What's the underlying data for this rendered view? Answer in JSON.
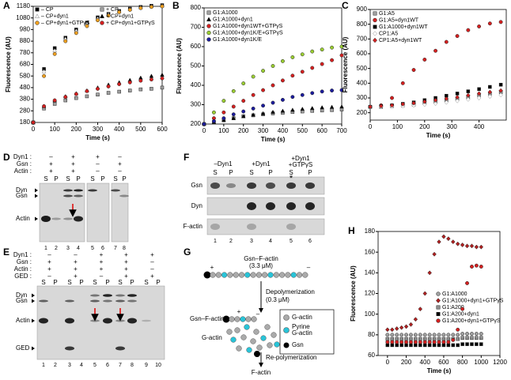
{
  "chart_data": [
    {
      "type": "scatter",
      "panel": "A",
      "xlabel": "Time (s)",
      "ylabel": "Fluorescence (AU)",
      "xlim": [
        0,
        600
      ],
      "ylim": [
        180,
        1180
      ],
      "xticks": [
        0,
        100,
        200,
        300,
        400,
        500,
        600
      ],
      "yticks": [
        180,
        280,
        380,
        480,
        580,
        680,
        780,
        880,
        980,
        1080,
        1180
      ],
      "legend_columns": 2,
      "x": [
        0,
        50,
        100,
        150,
        200,
        250,
        300,
        350,
        400,
        450,
        500,
        550,
        600
      ],
      "series": [
        {
          "name": "– CP",
          "color": "#000000",
          "marker": "square",
          "filled": true,
          "values": [
            180,
            640,
            820,
            910,
            980,
            1040,
            1085,
            1115,
            1140,
            1160,
            1175,
            1185,
            1190
          ]
        },
        {
          "name": "– CP+dyn1",
          "color": "#808080",
          "marker": "triangle",
          "filled": false,
          "values": [
            180,
            620,
            800,
            900,
            970,
            1030,
            1075,
            1110,
            1135,
            1155,
            1170,
            1180,
            1185
          ]
        },
        {
          "name": "– CP+dyn1+GTPγS",
          "color": "#f0a020",
          "marker": "circle",
          "filled": true,
          "values": [
            180,
            580,
            770,
            880,
            950,
            1010,
            1060,
            1100,
            1130,
            1150,
            1165,
            1175,
            1180
          ]
        },
        {
          "name": "+ CP",
          "color": "#a0a0a0",
          "marker": "square",
          "filled": true,
          "values": [
            180,
            300,
            340,
            370,
            390,
            405,
            420,
            435,
            445,
            455,
            465,
            470,
            480
          ]
        },
        {
          "name": "+ CP+dyn1",
          "color": "#000000",
          "marker": "triangle",
          "filled": true,
          "values": [
            180,
            320,
            370,
            405,
            430,
            455,
            480,
            505,
            525,
            545,
            565,
            580,
            590
          ]
        },
        {
          "name": "+ CP+dyn1+GTPγS",
          "color": "#d42020",
          "marker": "circle",
          "filled": true,
          "values": [
            180,
            320,
            370,
            400,
            425,
            450,
            470,
            490,
            510,
            525,
            540,
            550,
            560
          ]
        }
      ]
    },
    {
      "type": "scatter",
      "panel": "B",
      "xlabel": "Time (s)",
      "ylabel": "Fluorescence (AU)",
      "xlim": [
        0,
        700
      ],
      "ylim": [
        200,
        800
      ],
      "xticks": [
        0,
        100,
        200,
        300,
        400,
        500,
        600,
        700
      ],
      "yticks": [
        200,
        300,
        400,
        500,
        600,
        700,
        800
      ],
      "legend_columns": 1,
      "x": [
        0,
        50,
        100,
        150,
        200,
        250,
        300,
        350,
        400,
        450,
        500,
        550,
        600,
        650,
        700
      ],
      "series": [
        {
          "name": "G1:A1000",
          "color": "#a0a0a0",
          "marker": "square",
          "filled": true,
          "values": [
            200,
            210,
            220,
            230,
            240,
            245,
            250,
            255,
            258,
            262,
            265,
            268,
            270,
            272,
            275
          ]
        },
        {
          "name": "G1:A1000+dyn1",
          "color": "#000000",
          "marker": "triangle",
          "filled": true,
          "values": [
            200,
            210,
            220,
            230,
            240,
            248,
            255,
            262,
            268,
            273,
            278,
            282,
            286,
            288,
            290
          ]
        },
        {
          "name": "G1:A1000+dyn1WT+GTPγS",
          "color": "#d42020",
          "marker": "circle",
          "filled": true,
          "values": [
            200,
            230,
            260,
            290,
            320,
            350,
            375,
            400,
            425,
            450,
            470,
            490,
            510,
            530,
            555
          ]
        },
        {
          "name": "G1:A1000+dyn1K/E+GTPγS",
          "color": "#9acd32",
          "marker": "circle",
          "filled": true,
          "values": [
            200,
            260,
            320,
            370,
            410,
            445,
            475,
            500,
            525,
            545,
            560,
            575,
            585,
            595,
            600
          ]
        },
        {
          "name": "G1:A1000+dyn1K/E",
          "color": "#1c1c9c",
          "marker": "circle",
          "filled": true,
          "values": [
            200,
            215,
            230,
            250,
            265,
            280,
            295,
            310,
            325,
            340,
            350,
            360,
            368,
            373,
            375
          ]
        }
      ]
    },
    {
      "type": "scatter",
      "panel": "C",
      "xlabel": "Time (s)",
      "ylabel": "Fluorescence (AU)",
      "xlim": [
        0,
        500
      ],
      "ylim": [
        150,
        900
      ],
      "xticks": [
        0,
        100,
        200,
        300,
        400
      ],
      "yticks": [
        200,
        300,
        400,
        500,
        600,
        700,
        800,
        900
      ],
      "legend_columns": 1,
      "x": [
        0,
        40,
        80,
        120,
        160,
        200,
        240,
        280,
        320,
        360,
        400,
        440,
        480
      ],
      "series": [
        {
          "name": "G1:A5",
          "color": "#a0a0a0",
          "marker": "square",
          "filled": true,
          "values": [
            240,
            240,
            245,
            250,
            255,
            265,
            275,
            285,
            295,
            305,
            320,
            330,
            340
          ]
        },
        {
          "name": "G1:A5+dyn1WT",
          "color": "#d42020",
          "marker": "circle",
          "filled": true,
          "values": [
            240,
            250,
            300,
            400,
            490,
            560,
            620,
            680,
            720,
            760,
            785,
            805,
            815
          ]
        },
        {
          "name": "G1:A1000+dyn1WT",
          "color": "#000000",
          "marker": "square",
          "filled": true,
          "values": [
            240,
            245,
            250,
            260,
            270,
            285,
            300,
            315,
            330,
            345,
            360,
            375,
            390
          ]
        },
        {
          "name": "CP1:A5",
          "color": "#909090",
          "marker": "diamond",
          "filled": false,
          "values": [
            240,
            240,
            242,
            245,
            250,
            255,
            262,
            270,
            280,
            290,
            300,
            310,
            320
          ]
        },
        {
          "name": "CP1:A5+dyn1WT",
          "color": "#d42020",
          "marker": "diamond",
          "filled": true,
          "values": [
            240,
            245,
            250,
            258,
            265,
            275,
            285,
            295,
            305,
            318,
            330,
            340,
            350
          ]
        }
      ]
    },
    {
      "type": "scatter",
      "panel": "H",
      "xlabel": "Time (s)",
      "ylabel": "Fluorescence (AU)",
      "xlim": [
        -100,
        1200
      ],
      "ylim": [
        60,
        180
      ],
      "xticks": [
        0,
        200,
        400,
        600,
        800,
        1000,
        1200
      ],
      "yticks": [
        60,
        80,
        100,
        120,
        140,
        160,
        180
      ],
      "legend_columns": 1,
      "x": [
        0,
        50,
        100,
        150,
        200,
        250,
        300,
        350,
        400,
        450,
        500,
        550,
        600,
        650,
        700,
        750,
        800,
        850,
        900,
        950,
        1000
      ],
      "series": [
        {
          "name": "G1:A1000",
          "color": "#a0a0a0",
          "marker": "circle",
          "filled": true,
          "values": [
            80,
            80,
            80,
            80,
            80,
            80,
            80,
            80,
            80,
            80,
            80,
            80,
            80,
            80,
            80,
            80,
            81,
            81,
            81,
            81,
            81
          ]
        },
        {
          "name": "G1:A1000+dyn1+GTPγS",
          "color": "#b02020",
          "marker": "diamond",
          "filled": true,
          "values": [
            85,
            85,
            86,
            87,
            88,
            90,
            95,
            105,
            120,
            140,
            158,
            170,
            175,
            173,
            170,
            168,
            167,
            166,
            166,
            165,
            165
          ]
        },
        {
          "name": "G1:A200",
          "color": "#909090",
          "marker": "square",
          "filled": true,
          "values": [
            76,
            76,
            76,
            76,
            76,
            76,
            76,
            76,
            76,
            76,
            76,
            76,
            76,
            76,
            76,
            76,
            77,
            77,
            77,
            77,
            77
          ]
        },
        {
          "name": "G1:A200+dyn1",
          "color": "#000000",
          "marker": "square",
          "filled": true,
          "values": [
            70,
            70,
            70,
            70,
            70,
            70,
            70,
            70,
            70,
            70,
            70,
            70,
            70,
            70,
            70,
            70,
            71,
            71,
            71,
            71,
            71
          ]
        },
        {
          "name": "G1:A200+dyn1+GTPγS",
          "color": "#d42020",
          "marker": "circle",
          "filled": true,
          "values": [
            73,
            73,
            73,
            73,
            73,
            73,
            73,
            73,
            73,
            73,
            73,
            73,
            73,
            73,
            75,
            85,
            105,
            130,
            146,
            147,
            146
          ]
        }
      ]
    }
  ],
  "gel_d": {
    "panel": "D",
    "rows": [
      {
        "label": "Dyn1 :",
        "signs": [
          "–",
          "+",
          "+",
          "–"
        ]
      },
      {
        "label": "Gsn :",
        "signs": [
          "+",
          "+",
          "–",
          "+"
        ]
      },
      {
        "label": "Actin :",
        "signs": [
          "+",
          "+",
          "–",
          "–"
        ]
      }
    ],
    "lane_headers": [
      "S",
      "P",
      "S",
      "P",
      "S",
      "P",
      "S",
      "P"
    ],
    "lanes": [
      1,
      2,
      3,
      4,
      5,
      6,
      7,
      8
    ],
    "bands": [
      "Dyn",
      "Gsn",
      "Actin"
    ]
  },
  "gel_e": {
    "panel": "E",
    "rows": [
      {
        "label": "Dyn1 :",
        "signs": [
          "–",
          "–",
          "+",
          "+",
          "+"
        ]
      },
      {
        "label": "Gsn :",
        "signs": [
          "+",
          "+",
          "+",
          "+",
          "–"
        ]
      },
      {
        "label": "Actin :",
        "signs": [
          "+",
          "+",
          "+",
          "+",
          "–"
        ]
      },
      {
        "label": "GED :",
        "signs": [
          "–",
          "+",
          "–",
          "+",
          "+"
        ]
      }
    ],
    "lane_headers": [
      "S",
      "P",
      "S",
      "P",
      "S",
      "P",
      "S",
      "P",
      "S",
      "P"
    ],
    "lanes": [
      1,
      2,
      3,
      4,
      5,
      6,
      7,
      8,
      9,
      10
    ],
    "bands": [
      "Dyn",
      "Gsn",
      "Actin",
      "GED"
    ]
  },
  "gel_f": {
    "panel": "F",
    "column_headers": [
      [
        "–Dyn1"
      ],
      [
        "+Dyn1"
      ],
      [
        "+Dyn1",
        "+GTPγS"
      ]
    ],
    "lane_headers": [
      "S",
      "P",
      "S",
      "P",
      "S",
      "P"
    ],
    "lanes": [
      1,
      2,
      3,
      4,
      5,
      6
    ],
    "bands": [
      "Gsn",
      "Dyn",
      "F-actin"
    ],
    "mark": "*"
  },
  "diagram_g": {
    "panel": "G",
    "top_label": [
      "Gsn–F-actin",
      "(3.3 μM)"
    ],
    "step1": [
      "Depolymerization",
      "(0.3 μM)"
    ],
    "middle_label": "Gsn–F-actin",
    "free_label": "G-actin",
    "step2": "Re-polymerization",
    "product": "F-actin",
    "ends": [
      "+",
      "–"
    ],
    "legend": [
      [
        "G-actin"
      ],
      [
        "Pyrine",
        "G-actin"
      ],
      [
        "Gsn"
      ]
    ]
  }
}
